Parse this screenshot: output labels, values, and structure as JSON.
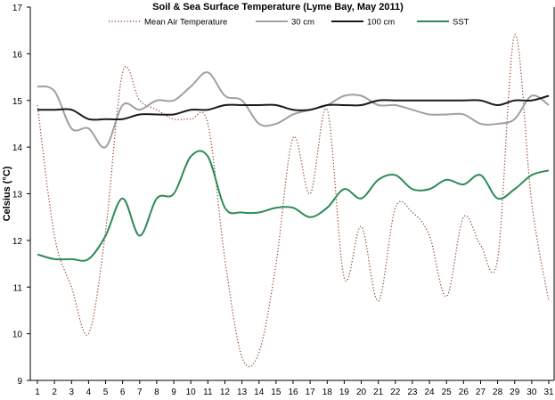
{
  "chart_data": {
    "type": "line",
    "title": "Soil & Sea Surface Temperature (Lyme Bay, May 2011)",
    "xlabel": "",
    "ylabel": "Celsius (°C)",
    "x": [
      1,
      2,
      3,
      4,
      5,
      6,
      7,
      8,
      9,
      10,
      11,
      12,
      13,
      14,
      15,
      16,
      17,
      18,
      19,
      20,
      21,
      22,
      23,
      24,
      25,
      26,
      27,
      28,
      29,
      30,
      31
    ],
    "ylim": [
      9,
      17
    ],
    "yticks": [
      9,
      10,
      11,
      12,
      13,
      14,
      15,
      16,
      17
    ],
    "grid": false,
    "legend": "top",
    "series": [
      {
        "name": "Mean Air Temperature",
        "color": "#8B3A1A",
        "style": "dotted",
        "values": [
          14.9,
          12.1,
          11.0,
          10.0,
          12.2,
          15.6,
          15.0,
          14.8,
          14.6,
          14.6,
          14.5,
          11.6,
          9.5,
          9.6,
          11.5,
          14.2,
          13.0,
          14.8,
          11.2,
          12.3,
          10.7,
          12.7,
          12.6,
          12.1,
          10.8,
          12.5,
          11.9,
          11.6,
          16.4,
          12.8,
          10.7
        ]
      },
      {
        "name": "30 cm",
        "color": "#a0a0a0",
        "style": "solid",
        "values": [
          15.3,
          15.2,
          14.4,
          14.4,
          14.0,
          14.9,
          14.8,
          15.0,
          15.0,
          15.3,
          15.6,
          15.1,
          15.0,
          14.5,
          14.5,
          14.7,
          14.8,
          14.9,
          15.1,
          15.1,
          14.9,
          14.9,
          14.8,
          14.7,
          14.7,
          14.7,
          14.5,
          14.5,
          14.6,
          15.1,
          14.9
        ]
      },
      {
        "name": "100 cm",
        "color": "#1a1a1a",
        "style": "solid",
        "values": [
          14.8,
          14.8,
          14.8,
          14.6,
          14.6,
          14.6,
          14.7,
          14.7,
          14.7,
          14.8,
          14.8,
          14.9,
          14.9,
          14.9,
          14.9,
          14.8,
          14.8,
          14.9,
          14.9,
          14.9,
          15.0,
          15.0,
          15.0,
          15.0,
          15.0,
          15.0,
          15.0,
          14.9,
          15.0,
          15.0,
          15.1
        ]
      },
      {
        "name": "SST",
        "color": "#2e8b57",
        "style": "solid",
        "values": [
          11.7,
          11.6,
          11.6,
          11.6,
          12.1,
          12.9,
          12.1,
          12.9,
          13.0,
          13.8,
          13.8,
          12.7,
          12.6,
          12.6,
          12.7,
          12.7,
          12.5,
          12.7,
          13.1,
          12.9,
          13.3,
          13.4,
          13.1,
          13.1,
          13.3,
          13.2,
          13.4,
          12.9,
          13.1,
          13.4,
          13.5
        ]
      }
    ]
  }
}
